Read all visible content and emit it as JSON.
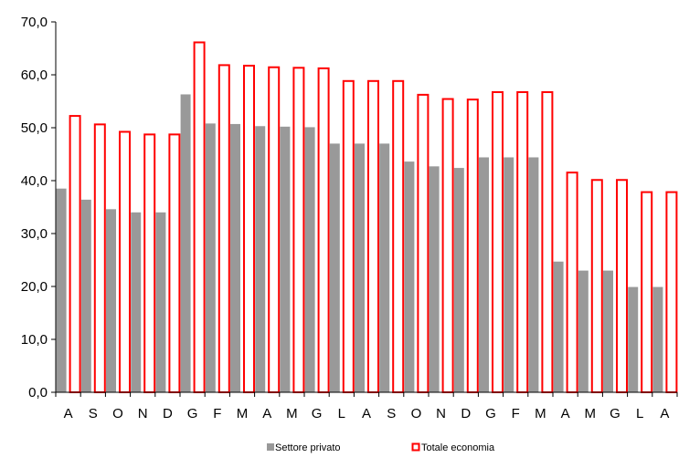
{
  "chart_data": {
    "type": "bar",
    "categories": [
      "A",
      "S",
      "O",
      "N",
      "D",
      "G",
      "F",
      "M",
      "A",
      "M",
      "G",
      "L",
      "A",
      "S",
      "O",
      "N",
      "D",
      "G",
      "F",
      "M",
      "A",
      "M",
      "G",
      "L",
      "A"
    ],
    "series": [
      {
        "name": "Settore privato",
        "color": "#999999",
        "style": "filled",
        "values": [
          38.5,
          36.4,
          34.6,
          34.0,
          34.0,
          56.3,
          50.8,
          50.7,
          50.3,
          50.2,
          50.1,
          47.0,
          47.0,
          47.0,
          43.6,
          42.7,
          42.4,
          44.4,
          44.4,
          44.4,
          24.7,
          23.0,
          23.0,
          19.9,
          19.9
        ]
      },
      {
        "name": "Totale economia",
        "color": "#ff0000",
        "style": "outline",
        "values": [
          52.4,
          50.8,
          49.4,
          48.9,
          48.9,
          66.3,
          62.0,
          61.9,
          61.6,
          61.5,
          61.4,
          59.0,
          59.0,
          59.0,
          56.4,
          55.6,
          55.5,
          56.9,
          56.9,
          56.9,
          41.7,
          40.3,
          40.3,
          38.0,
          38.0
        ]
      }
    ],
    "yticks": [
      "0,0",
      "10,0",
      "20,0",
      "30,0",
      "40,0",
      "50,0",
      "60,0",
      "70,0"
    ],
    "ylim": [
      0,
      70
    ],
    "grid": false,
    "legend_position": "bottom"
  }
}
